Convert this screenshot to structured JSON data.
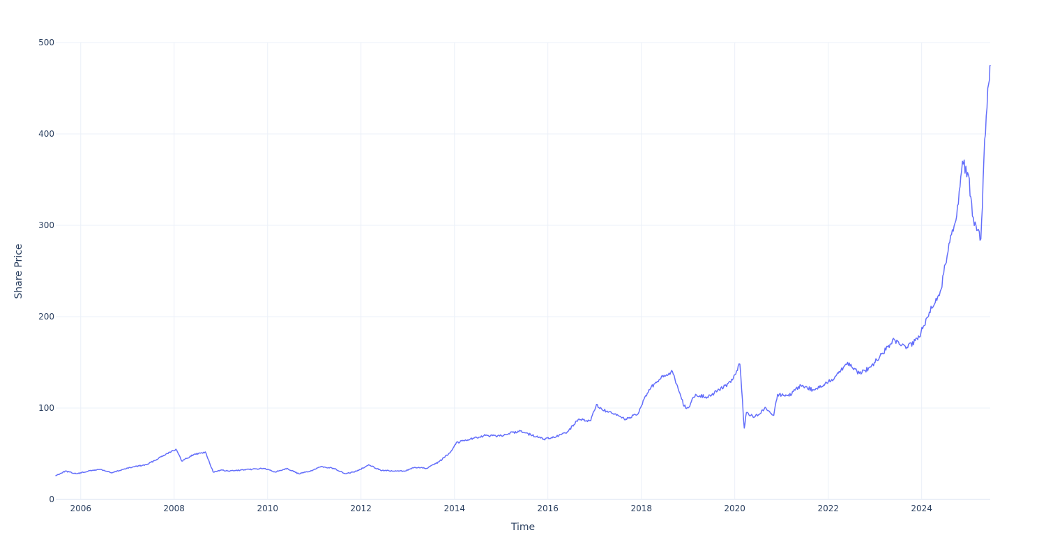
{
  "chart_data": {
    "type": "line",
    "xlabel": "Time",
    "ylabel": "Share Price",
    "xlim": [
      "2005-06-20",
      "2025-06-20"
    ],
    "ylim": [
      0,
      500
    ],
    "x_ticks": [
      "2006",
      "2008",
      "2010",
      "2012",
      "2014",
      "2016",
      "2018",
      "2020",
      "2022",
      "2024"
    ],
    "y_ticks": [
      0,
      100,
      200,
      300,
      400,
      500
    ],
    "grid": true,
    "legend": "none",
    "colors": {
      "line": "#636efa",
      "grid": "#ebf0f8",
      "text": "#2a3f5f"
    },
    "series": [
      {
        "x": [
          "2005-06-20",
          "2005-09-01",
          "2005-12-01",
          "2006-03-01",
          "2006-06-01",
          "2006-09-01",
          "2006-12-01",
          "2007-03-01",
          "2007-06-01",
          "2007-09-01",
          "2007-11-01",
          "2008-01-15",
          "2008-03-01",
          "2008-06-01",
          "2008-09-01",
          "2008-11-01",
          "2009-01-01",
          "2009-03-01",
          "2009-06-01",
          "2009-09-01",
          "2009-12-01",
          "2010-03-01",
          "2010-06-01",
          "2010-09-01",
          "2010-12-01",
          "2011-03-01",
          "2011-06-01",
          "2011-09-01",
          "2011-12-01",
          "2012-03-01",
          "2012-06-01",
          "2012-09-01",
          "2012-12-01",
          "2013-03-01",
          "2013-06-01",
          "2013-09-01",
          "2013-12-01",
          "2014-01-15",
          "2014-03-01",
          "2014-06-01",
          "2014-09-01",
          "2014-12-01",
          "2015-03-01",
          "2015-06-01",
          "2015-09-01",
          "2015-12-01",
          "2016-03-01",
          "2016-06-01",
          "2016-09-01",
          "2016-12-01",
          "2017-01-15",
          "2017-03-01",
          "2017-06-01",
          "2017-09-01",
          "2017-12-01",
          "2018-03-01",
          "2018-06-01",
          "2018-09-01",
          "2018-12-01",
          "2019-01-01",
          "2019-03-01",
          "2019-06-01",
          "2019-09-01",
          "2019-12-01",
          "2020-02-10",
          "2020-03-15",
          "2020-04-01",
          "2020-06-01",
          "2020-09-01",
          "2020-11-01",
          "2020-12-01",
          "2021-03-01",
          "2021-06-01",
          "2021-09-01",
          "2021-12-01",
          "2022-03-01",
          "2022-06-01",
          "2022-09-01",
          "2022-12-01",
          "2023-03-01",
          "2023-06-01",
          "2023-09-01",
          "2023-12-01",
          "2024-03-01",
          "2024-06-01",
          "2024-08-01",
          "2024-10-01",
          "2024-11-15",
          "2025-01-01",
          "2025-02-01",
          "2025-03-01",
          "2025-04-08",
          "2025-04-20",
          "2025-05-01",
          "2025-05-20",
          "2025-06-01",
          "2025-06-15",
          "2025-06-20"
        ],
        "y": [
          26,
          31,
          28,
          31,
          33,
          29,
          33,
          36,
          38,
          45,
          50,
          55,
          42,
          49,
          52,
          30,
          32,
          31,
          32,
          33,
          34,
          30,
          34,
          28,
          31,
          36,
          34,
          28,
          31,
          38,
          32,
          31,
          31,
          35,
          34,
          41,
          52,
          62,
          64,
          67,
          70,
          69,
          72,
          75,
          70,
          66,
          68,
          74,
          88,
          86,
          104,
          98,
          93,
          88,
          93,
          120,
          132,
          140,
          102,
          100,
          115,
          112,
          120,
          128,
          148,
          78,
          95,
          90,
          100,
          92,
          115,
          113,
          125,
          120,
          125,
          135,
          150,
          138,
          145,
          160,
          175,
          165,
          175,
          205,
          230,
          280,
          310,
          370,
          355,
          310,
          300,
          285,
          320,
          370,
          420,
          450,
          460,
          475
        ]
      }
    ]
  }
}
